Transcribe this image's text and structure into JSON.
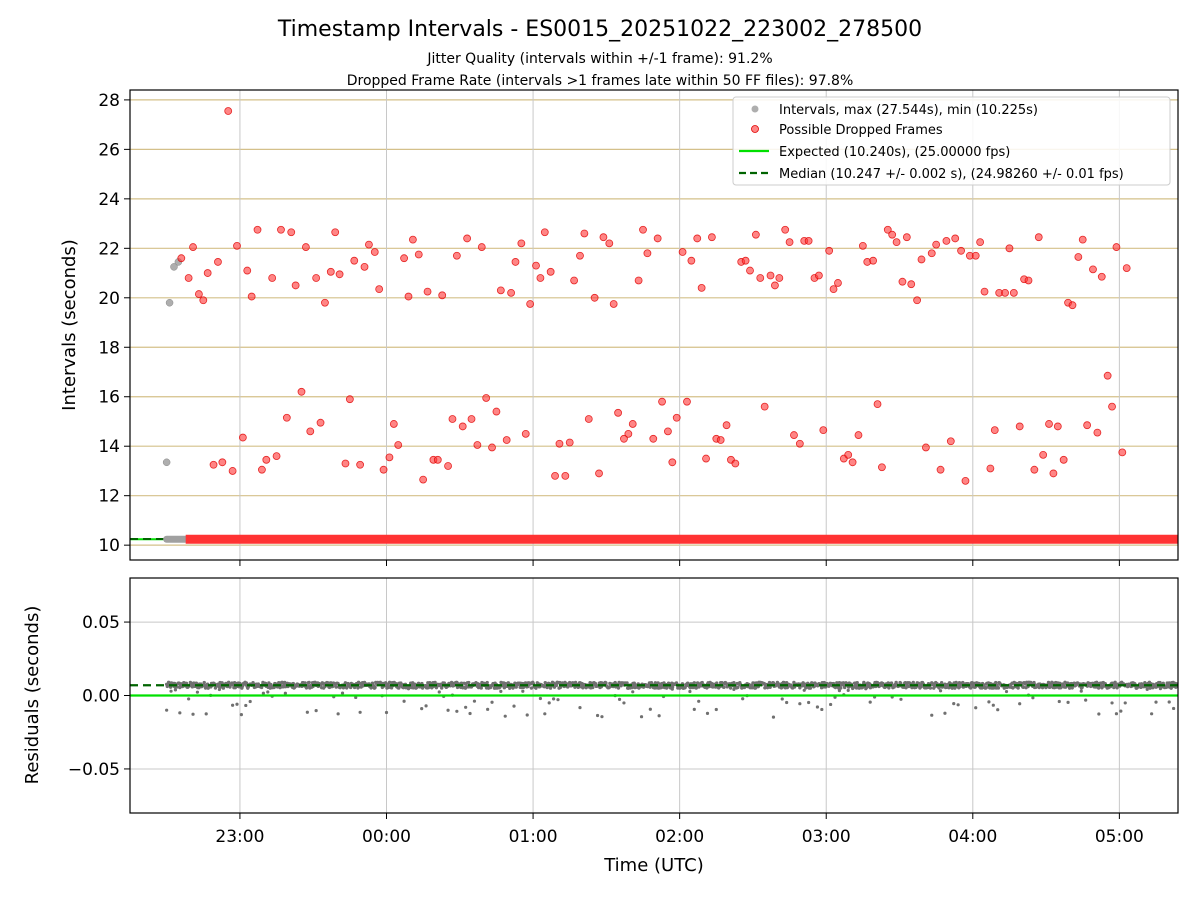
{
  "chart_data": [
    {
      "type": "scatter",
      "title": "Timestamp Intervals - ES0015_20251022_223002_278500",
      "subtitle_lines": [
        "Jitter Quality (intervals within +/-1 frame): 91.2%",
        "Dropped Frame Rate (intervals >1 frames late within 50 FF files): 97.8%"
      ],
      "ylabel": "Intervals (seconds)",
      "xlim_hours": [
        22.25,
        29.4
      ],
      "ylim": [
        9.4,
        28.4
      ],
      "y_ticks": [
        10,
        12,
        14,
        16,
        18,
        20,
        22,
        24,
        26,
        28
      ],
      "y_tick_labels": [
        "10",
        "12",
        "14",
        "16",
        "18",
        "20",
        "22",
        "24",
        "26",
        "28"
      ],
      "x_ticks_hours": [
        23,
        24,
        25,
        26,
        27,
        28,
        29
      ],
      "y_grid_color": "#d4c08a",
      "x_grid_color": "#c8c8c8",
      "legend_position": "top-right",
      "legend": [
        "Intervals, max (27.544s), min (10.225s)",
        "Possible Dropped Frames",
        "Expected (10.240s), (25.00000 fps)",
        "Median (10.247 +/- 0.002 s), (24.98260 +/- 0.01 fps)"
      ],
      "colors": {
        "intervals": "#a0a0a0",
        "dropped": "#ff3333",
        "expected": "#00e000",
        "median": "#006400"
      },
      "expected": 10.24,
      "median": 10.247,
      "baseline": {
        "y": 10.24,
        "normal_x_range": [
          22.5,
          22.63
        ],
        "dropped_x_range": [
          22.63,
          29.4
        ]
      },
      "intervals_points": [
        [
          22.5,
          13.35
        ],
        [
          22.52,
          19.8
        ],
        [
          22.55,
          21.25
        ],
        [
          22.58,
          21.45
        ]
      ],
      "dropped_points": [
        [
          22.6,
          21.6
        ],
        [
          22.65,
          20.8
        ],
        [
          22.68,
          22.05
        ],
        [
          22.72,
          20.15
        ],
        [
          22.75,
          19.9
        ],
        [
          22.78,
          21.0
        ],
        [
          22.82,
          13.25
        ],
        [
          22.85,
          21.45
        ],
        [
          22.88,
          13.35
        ],
        [
          22.92,
          27.55
        ],
        [
          22.95,
          13.0
        ],
        [
          22.98,
          22.1
        ],
        [
          23.02,
          14.35
        ],
        [
          23.05,
          21.1
        ],
        [
          23.08,
          20.05
        ],
        [
          23.12,
          22.75
        ],
        [
          23.15,
          13.05
        ],
        [
          23.18,
          13.45
        ],
        [
          23.22,
          20.8
        ],
        [
          23.25,
          13.6
        ],
        [
          23.28,
          22.75
        ],
        [
          23.32,
          15.15
        ],
        [
          23.35,
          22.65
        ],
        [
          23.38,
          20.5
        ],
        [
          23.42,
          16.2
        ],
        [
          23.45,
          22.05
        ],
        [
          23.48,
          14.6
        ],
        [
          23.52,
          20.8
        ],
        [
          23.55,
          14.95
        ],
        [
          23.58,
          19.8
        ],
        [
          23.62,
          21.05
        ],
        [
          23.65,
          22.65
        ],
        [
          23.68,
          20.95
        ],
        [
          23.72,
          13.3
        ],
        [
          23.75,
          15.9
        ],
        [
          23.78,
          21.5
        ],
        [
          23.82,
          13.25
        ],
        [
          23.85,
          21.25
        ],
        [
          23.88,
          22.15
        ],
        [
          23.92,
          21.85
        ],
        [
          23.95,
          20.35
        ],
        [
          23.98,
          13.05
        ],
        [
          24.02,
          13.55
        ],
        [
          24.05,
          14.9
        ],
        [
          24.08,
          14.05
        ],
        [
          24.12,
          21.6
        ],
        [
          24.15,
          20.05
        ],
        [
          24.18,
          22.35
        ],
        [
          24.22,
          21.75
        ],
        [
          24.25,
          12.65
        ],
        [
          24.28,
          20.25
        ],
        [
          24.32,
          13.45
        ],
        [
          24.35,
          13.45
        ],
        [
          24.38,
          20.1
        ],
        [
          24.42,
          13.2
        ],
        [
          24.45,
          15.1
        ],
        [
          24.48,
          21.7
        ],
        [
          24.52,
          14.8
        ],
        [
          24.55,
          22.4
        ],
        [
          24.58,
          15.1
        ],
        [
          24.62,
          14.05
        ],
        [
          24.65,
          22.05
        ],
        [
          24.68,
          15.95
        ],
        [
          24.72,
          13.95
        ],
        [
          24.75,
          15.4
        ],
        [
          24.78,
          20.3
        ],
        [
          24.82,
          14.25
        ],
        [
          24.85,
          20.2
        ],
        [
          24.88,
          21.45
        ],
        [
          24.92,
          22.2
        ],
        [
          24.95,
          14.5
        ],
        [
          24.98,
          19.75
        ],
        [
          25.02,
          21.3
        ],
        [
          25.05,
          20.8
        ],
        [
          25.08,
          22.65
        ],
        [
          25.12,
          21.05
        ],
        [
          25.15,
          12.8
        ],
        [
          25.18,
          14.1
        ],
        [
          25.22,
          12.8
        ],
        [
          25.25,
          14.15
        ],
        [
          25.28,
          20.7
        ],
        [
          25.32,
          21.7
        ],
        [
          25.35,
          22.6
        ],
        [
          25.38,
          15.1
        ],
        [
          25.42,
          20.0
        ],
        [
          25.45,
          12.9
        ],
        [
          25.48,
          22.45
        ],
        [
          25.52,
          22.2
        ],
        [
          25.55,
          19.75
        ],
        [
          25.58,
          15.35
        ],
        [
          25.62,
          14.3
        ],
        [
          25.65,
          14.5
        ],
        [
          25.68,
          14.9
        ],
        [
          25.72,
          20.7
        ],
        [
          25.75,
          22.75
        ],
        [
          25.78,
          21.8
        ],
        [
          25.82,
          14.3
        ],
        [
          25.85,
          22.4
        ],
        [
          25.88,
          15.8
        ],
        [
          25.92,
          14.6
        ],
        [
          25.95,
          13.35
        ],
        [
          25.98,
          15.15
        ],
        [
          26.02,
          21.85
        ],
        [
          26.05,
          15.8
        ],
        [
          26.08,
          21.5
        ],
        [
          26.12,
          22.4
        ],
        [
          26.15,
          20.4
        ],
        [
          26.18,
          13.5
        ],
        [
          26.22,
          22.45
        ],
        [
          26.25,
          14.3
        ],
        [
          26.28,
          14.25
        ],
        [
          26.32,
          14.85
        ],
        [
          26.35,
          13.45
        ],
        [
          26.38,
          13.3
        ],
        [
          26.42,
          21.45
        ],
        [
          26.45,
          21.5
        ],
        [
          26.48,
          21.1
        ],
        [
          26.52,
          22.55
        ],
        [
          26.55,
          20.8
        ],
        [
          26.58,
          15.6
        ],
        [
          26.62,
          20.9
        ],
        [
          26.65,
          20.5
        ],
        [
          26.68,
          20.8
        ],
        [
          26.72,
          22.75
        ],
        [
          26.75,
          22.25
        ],
        [
          26.78,
          14.45
        ],
        [
          26.82,
          14.1
        ],
        [
          26.85,
          22.3
        ],
        [
          26.88,
          22.3
        ],
        [
          26.92,
          20.8
        ],
        [
          26.95,
          20.9
        ],
        [
          26.98,
          14.65
        ],
        [
          27.02,
          21.9
        ],
        [
          27.05,
          20.35
        ],
        [
          27.08,
          20.6
        ],
        [
          27.12,
          13.5
        ],
        [
          27.15,
          13.65
        ],
        [
          27.18,
          13.35
        ],
        [
          27.22,
          14.45
        ],
        [
          27.25,
          22.1
        ],
        [
          27.28,
          21.45
        ],
        [
          27.32,
          21.5
        ],
        [
          27.35,
          15.7
        ],
        [
          27.38,
          13.15
        ],
        [
          27.42,
          22.75
        ],
        [
          27.45,
          22.55
        ],
        [
          27.48,
          22.25
        ],
        [
          27.52,
          20.65
        ],
        [
          27.55,
          22.45
        ],
        [
          27.58,
          20.55
        ],
        [
          27.62,
          19.9
        ],
        [
          27.65,
          21.55
        ],
        [
          27.68,
          13.95
        ],
        [
          27.72,
          21.8
        ],
        [
          27.75,
          22.15
        ],
        [
          27.78,
          13.05
        ],
        [
          27.82,
          22.3
        ],
        [
          27.85,
          14.2
        ],
        [
          27.88,
          22.4
        ],
        [
          27.92,
          21.9
        ],
        [
          27.95,
          12.6
        ],
        [
          27.98,
          21.7
        ],
        [
          28.02,
          21.7
        ],
        [
          28.05,
          22.25
        ],
        [
          28.08,
          20.25
        ],
        [
          28.12,
          13.1
        ],
        [
          28.15,
          14.65
        ],
        [
          28.18,
          20.2
        ],
        [
          28.22,
          20.2
        ],
        [
          28.25,
          22.0
        ],
        [
          28.28,
          20.2
        ],
        [
          28.32,
          14.8
        ],
        [
          28.35,
          20.75
        ],
        [
          28.38,
          20.7
        ],
        [
          28.42,
          13.05
        ],
        [
          28.45,
          22.45
        ],
        [
          28.48,
          13.65
        ],
        [
          28.52,
          14.9
        ],
        [
          28.55,
          12.9
        ],
        [
          28.58,
          14.8
        ],
        [
          28.62,
          13.45
        ],
        [
          28.65,
          19.8
        ],
        [
          28.68,
          19.7
        ],
        [
          28.72,
          21.65
        ],
        [
          28.75,
          22.35
        ],
        [
          28.78,
          14.85
        ],
        [
          28.82,
          21.15
        ],
        [
          28.85,
          14.55
        ],
        [
          28.88,
          20.85
        ],
        [
          28.92,
          16.85
        ],
        [
          28.95,
          15.6
        ],
        [
          28.98,
          22.05
        ],
        [
          29.02,
          13.75
        ],
        [
          29.05,
          21.2
        ]
      ]
    },
    {
      "type": "scatter",
      "ylabel": "Residuals (seconds)",
      "xlabel": "Time (UTC)",
      "xlim_hours": [
        22.25,
        29.4
      ],
      "ylim": [
        -0.08,
        0.08
      ],
      "y_ticks": [
        -0.05,
        0.0,
        0.05
      ],
      "y_tick_labels": [
        "−0.05",
        "0.00",
        "0.05"
      ],
      "x_ticks_hours": [
        23,
        24,
        25,
        26,
        27,
        28,
        29
      ],
      "x_tick_labels": [
        "23:00",
        "00:00",
        "01:00",
        "02:00",
        "03:00",
        "04:00",
        "05:00"
      ],
      "expected_residual": 0.0,
      "median_residual": 0.007,
      "residual_band": {
        "center": 0.007,
        "spread": 0.002,
        "outlier_min": -0.015
      },
      "colors": {
        "points": "#707070",
        "expected": "#00e000",
        "median": "#006400",
        "grid": "#c8c8c8"
      }
    }
  ]
}
